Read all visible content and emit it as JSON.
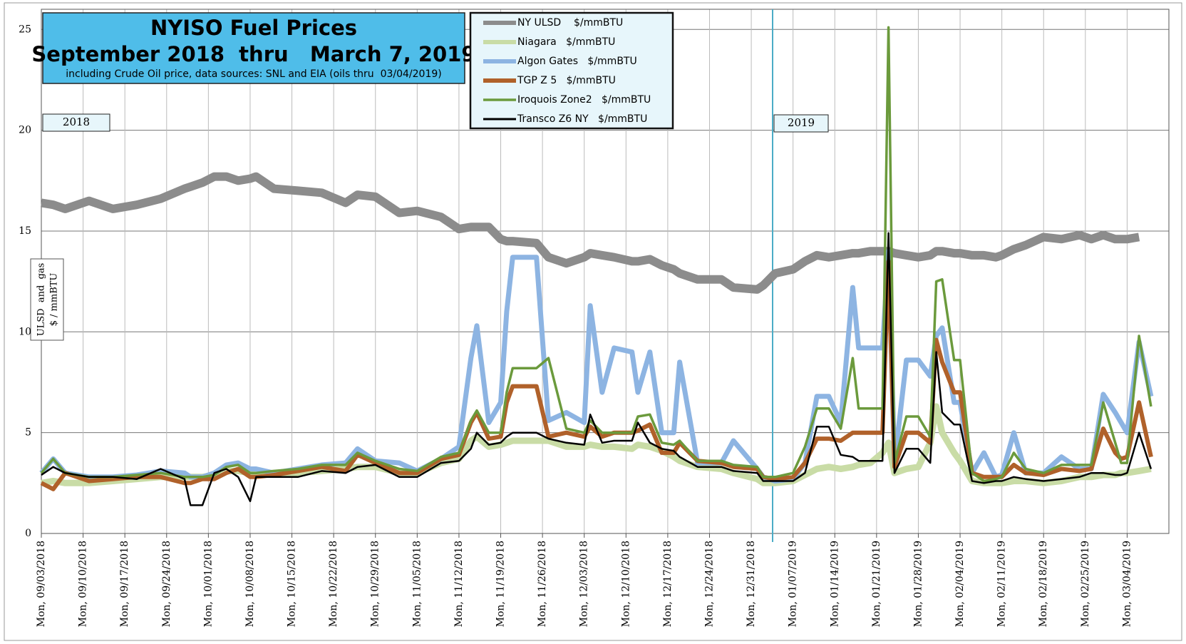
{
  "chart_data": {
    "type": "line",
    "title": "NYISO Fuel Prices",
    "subtitle": "September 2018  thru   March 7, 2019",
    "note": "including Crude Oil price, data sources: SNL and EIA (oils thru  03/04/2019)",
    "y_label": "ULSD  and  gas",
    "y_label_units": "$ / mmBTU",
    "year_labels": [
      "2018",
      "2019"
    ],
    "x": [
      0,
      2,
      4,
      8,
      12,
      16,
      20,
      24,
      25,
      27,
      29,
      31,
      33,
      35,
      36,
      39,
      43,
      47,
      51,
      53,
      56,
      60,
      63,
      67,
      70,
      72,
      73,
      75,
      77,
      78,
      79,
      83,
      85,
      88,
      91,
      92,
      94,
      96,
      99,
      100,
      102,
      104,
      106,
      107,
      110,
      114,
      116,
      120,
      121,
      123,
      126,
      128,
      130,
      132,
      134,
      136,
      137,
      139,
      141,
      142,
      143,
      145,
      147,
      149,
      150,
      151,
      153,
      154,
      156,
      158,
      160,
      161,
      163,
      165,
      168,
      171,
      174,
      176,
      178,
      180,
      181,
      182,
      184,
      186
    ],
    "xlim": [
      0,
      189
    ],
    "xticks": [
      {
        "value": 0,
        "label": "Mon, 09/03/2018"
      },
      {
        "value": 7,
        "label": "Mon, 09/10/2018"
      },
      {
        "value": 14,
        "label": "Mon, 09/17/2018"
      },
      {
        "value": 21,
        "label": "Mon, 09/24/2018"
      },
      {
        "value": 28,
        "label": "Mon, 10/01/2018"
      },
      {
        "value": 35,
        "label": "Mon, 10/08/2018"
      },
      {
        "value": 42,
        "label": "Mon, 10/15/2018"
      },
      {
        "value": 49,
        "label": "Mon, 10/22/2018"
      },
      {
        "value": 56,
        "label": "Mon, 10/29/2018"
      },
      {
        "value": 63,
        "label": "Mon, 11/05/2018"
      },
      {
        "value": 70,
        "label": "Mon, 11/12/2018"
      },
      {
        "value": 77,
        "label": "Mon, 11/19/2018"
      },
      {
        "value": 84,
        "label": "Mon, 11/26/2018"
      },
      {
        "value": 91,
        "label": "Mon, 12/03/2018"
      },
      {
        "value": 98,
        "label": "Mon, 12/10/2018"
      },
      {
        "value": 105,
        "label": "Mon, 12/17/2018"
      },
      {
        "value": 112,
        "label": "Mon, 12/24/2018"
      },
      {
        "value": 119,
        "label": "Mon, 12/31/2018"
      },
      {
        "value": 126,
        "label": "Mon, 01/07/2019"
      },
      {
        "value": 133,
        "label": "Mon, 01/14/2019"
      },
      {
        "value": 140,
        "label": "Mon, 01/21/2019"
      },
      {
        "value": 147,
        "label": "Mon, 01/28/2019"
      },
      {
        "value": 154,
        "label": "Mon, 02/04/2019"
      },
      {
        "value": 161,
        "label": "Mon, 02/11/2019"
      },
      {
        "value": 168,
        "label": "Mon, 02/18/2019"
      },
      {
        "value": 175,
        "label": "Mon, 02/25/2019"
      },
      {
        "value": 182,
        "label": "Mon, 03/04/2019"
      }
    ],
    "ylim": [
      0,
      26
    ],
    "yticks": [
      0,
      5,
      10,
      15,
      20,
      25
    ],
    "grid": true,
    "series": [
      {
        "name": "NY ULSD    $/mmBTU",
        "color": "#8c8c8c",
        "values": [
          16.4,
          16.3,
          16.1,
          16.5,
          16.1,
          16.3,
          16.6,
          17.1,
          17.2,
          17.4,
          17.7,
          17.7,
          17.5,
          17.6,
          17.7,
          17.1,
          17.0,
          16.9,
          16.4,
          16.8,
          16.7,
          15.9,
          16.0,
          15.7,
          15.1,
          15.2,
          15.2,
          15.2,
          14.6,
          14.5,
          14.5,
          14.4,
          13.7,
          13.4,
          13.7,
          13.9,
          13.8,
          13.7,
          13.5,
          13.5,
          13.6,
          13.3,
          13.1,
          12.9,
          12.6,
          12.6,
          12.2,
          12.1,
          12.3,
          12.9,
          13.1,
          13.5,
          13.8,
          13.7,
          13.8,
          13.9,
          13.9,
          14.0,
          14.0,
          14.0,
          13.9,
          13.8,
          13.7,
          13.8,
          14.0,
          14.0,
          13.9,
          13.9,
          13.8,
          13.8,
          13.7,
          13.8,
          14.1,
          14.3,
          14.7,
          14.6,
          14.8,
          14.6,
          14.8,
          14.6,
          14.6,
          14.6,
          14.7,
          null
        ]
      },
      {
        "name": "Niagara   $/mmBTU",
        "color": "#c9dca6",
        "values": [
          2.5,
          2.6,
          2.5,
          2.5,
          2.6,
          2.7,
          2.8,
          2.8,
          2.8,
          2.8,
          2.9,
          3.1,
          3.1,
          3.0,
          3.0,
          3.0,
          3.0,
          3.1,
          3.2,
          3.3,
          3.3,
          3.0,
          3.0,
          3.5,
          3.7,
          4.6,
          4.8,
          4.3,
          4.4,
          4.5,
          4.6,
          4.6,
          4.6,
          4.3,
          4.3,
          4.4,
          4.3,
          4.3,
          4.2,
          4.4,
          4.3,
          4.1,
          3.8,
          3.6,
          3.3,
          3.2,
          3.0,
          2.7,
          2.5,
          2.5,
          2.6,
          2.9,
          3.2,
          3.3,
          3.2,
          3.3,
          3.4,
          3.5,
          4.0,
          4.5,
          3.0,
          3.2,
          3.3,
          4.5,
          6.3,
          5.0,
          4.0,
          3.6,
          2.6,
          2.5,
          2.5,
          2.5,
          2.6,
          2.6,
          2.5,
          2.6,
          2.8,
          2.8,
          2.9,
          2.9,
          3.0,
          3.0,
          3.1,
          3.2
        ]
      },
      {
        "name": "Algon Gates   $/mmBTU",
        "color": "#8db4e2",
        "values": [
          3.0,
          3.7,
          3.0,
          2.8,
          2.8,
          2.9,
          3.1,
          3.0,
          2.8,
          2.8,
          3.0,
          3.4,
          3.5,
          3.2,
          3.2,
          3.0,
          3.2,
          3.4,
          3.5,
          4.2,
          3.6,
          3.5,
          3.1,
          3.7,
          4.3,
          8.7,
          10.3,
          5.5,
          6.5,
          11.0,
          13.7,
          13.7,
          5.6,
          6.0,
          5.5,
          11.3,
          7.0,
          9.2,
          9.0,
          7.0,
          9.0,
          5.0,
          5.0,
          8.5,
          3.5,
          3.5,
          4.6,
          3.2,
          2.8,
          2.6,
          2.7,
          3.5,
          6.8,
          6.8,
          5.5,
          12.2,
          9.2,
          9.2,
          9.2,
          14.0,
          3.5,
          8.6,
          8.6,
          7.8,
          9.8,
          10.2,
          6.5,
          6.5,
          3.0,
          4.0,
          2.8,
          2.9,
          5.0,
          3.0,
          3.0,
          3.8,
          3.2,
          3.2,
          6.9,
          6.0,
          5.5,
          5.0,
          9.5,
          6.8
        ]
      },
      {
        "name": "TGP Z 5   $/mmBTU",
        "color": "#b0612a",
        "values": [
          2.5,
          2.2,
          3.0,
          2.6,
          2.7,
          2.8,
          2.8,
          2.5,
          2.5,
          2.7,
          2.7,
          3.0,
          3.2,
          2.8,
          2.8,
          2.9,
          3.1,
          3.3,
          3.1,
          3.9,
          3.5,
          3.0,
          3.0,
          3.7,
          3.9,
          5.5,
          6.0,
          4.7,
          4.8,
          6.5,
          7.3,
          7.3,
          4.8,
          5.0,
          4.8,
          5.3,
          4.8,
          5.0,
          5.0,
          5.1,
          5.4,
          4.0,
          4.0,
          4.5,
          3.6,
          3.5,
          3.3,
          3.2,
          2.8,
          2.7,
          2.8,
          3.5,
          4.7,
          4.7,
          4.6,
          5.0,
          5.0,
          5.0,
          5.0,
          13.5,
          3.3,
          5.0,
          5.0,
          4.5,
          9.6,
          8.5,
          7.0,
          7.0,
          3.0,
          2.8,
          2.8,
          2.8,
          3.4,
          3.0,
          2.9,
          3.2,
          3.1,
          3.2,
          5.2,
          4.0,
          3.7,
          3.8,
          6.5,
          3.8
        ]
      },
      {
        "name": "Iroquois Zone2   $/mmBTU",
        "color": "#6b9a3c",
        "values": [
          3.0,
          3.7,
          3.0,
          2.8,
          2.8,
          2.9,
          3.0,
          2.8,
          2.8,
          2.8,
          2.9,
          3.3,
          3.4,
          3.0,
          3.0,
          3.1,
          3.2,
          3.4,
          3.4,
          4.0,
          3.6,
          3.2,
          3.1,
          3.8,
          4.0,
          5.6,
          6.1,
          5.0,
          5.0,
          7.0,
          8.2,
          8.2,
          8.7,
          5.2,
          5.0,
          5.6,
          5.0,
          5.0,
          5.0,
          5.8,
          5.9,
          4.5,
          4.4,
          4.6,
          3.6,
          3.6,
          3.4,
          3.3,
          2.8,
          2.8,
          3.0,
          4.3,
          6.2,
          6.2,
          5.2,
          8.7,
          6.2,
          6.2,
          6.2,
          25.1,
          3.5,
          5.8,
          5.8,
          4.8,
          12.5,
          12.6,
          8.6,
          8.6,
          3.0,
          2.6,
          2.7,
          2.8,
          4.0,
          3.2,
          3.0,
          3.4,
          3.4,
          3.4,
          6.5,
          4.5,
          3.5,
          3.5,
          9.8,
          6.3
        ]
      },
      {
        "name": "Transco Z6 NY   $/mmBTU",
        "color": "#000000",
        "values": [
          2.9,
          3.3,
          3.0,
          2.8,
          2.8,
          2.7,
          3.2,
          2.7,
          1.4,
          1.4,
          3.0,
          3.2,
          2.8,
          1.6,
          2.8,
          2.8,
          2.8,
          3.1,
          3.0,
          3.3,
          3.4,
          2.8,
          2.8,
          3.5,
          3.6,
          4.2,
          5.0,
          4.4,
          4.5,
          4.8,
          5.0,
          5.0,
          4.7,
          4.5,
          4.4,
          5.9,
          4.5,
          4.6,
          4.6,
          5.5,
          4.5,
          4.2,
          4.1,
          3.8,
          3.3,
          3.3,
          3.1,
          3.0,
          2.6,
          2.6,
          2.6,
          3.0,
          5.3,
          5.3,
          3.9,
          3.8,
          3.6,
          3.6,
          3.6,
          14.9,
          3.0,
          4.2,
          4.2,
          3.5,
          9.0,
          6.0,
          5.4,
          5.4,
          2.6,
          2.5,
          2.6,
          2.6,
          2.8,
          2.7,
          2.6,
          2.7,
          2.8,
          3.0,
          3.0,
          2.9,
          2.9,
          3.0,
          5.0,
          3.2
        ]
      }
    ]
  }
}
